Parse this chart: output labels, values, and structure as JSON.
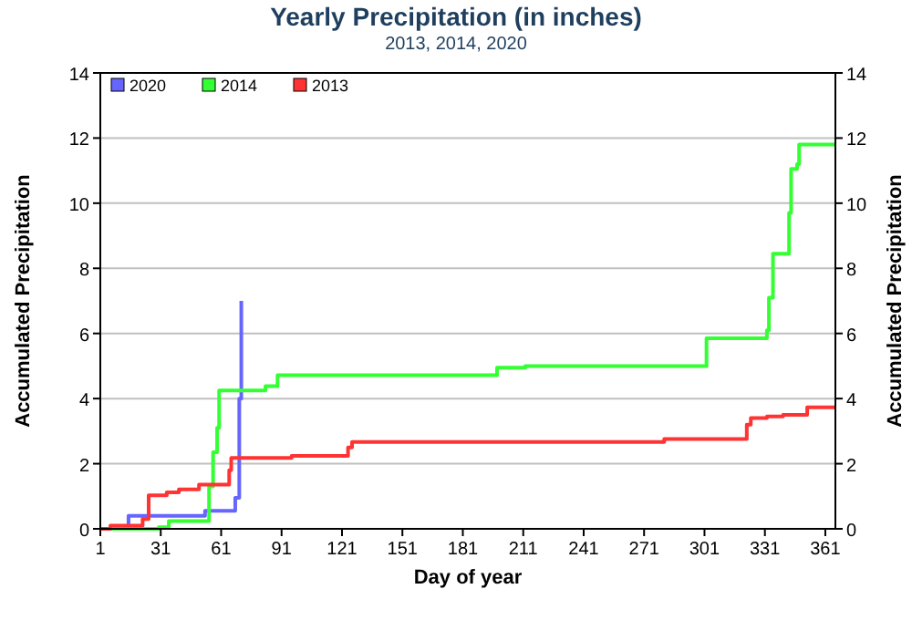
{
  "chart_data": {
    "type": "step",
    "title": "Yearly Precipitation (in inches)",
    "subtitle": "2013, 2014, 2020",
    "xlabel": "Day of year",
    "ylabel": "Accumulated Precipitation",
    "y2label": "Accumulated Precipitation",
    "xlim": [
      1,
      366
    ],
    "xticks": [
      1,
      31,
      61,
      91,
      121,
      151,
      181,
      211,
      241,
      271,
      301,
      331,
      361
    ],
    "ylim": [
      0,
      14
    ],
    "yticks": [
      0,
      2,
      4,
      6,
      8,
      10,
      12,
      14
    ],
    "y2lim": [
      0,
      14
    ],
    "y2ticks": [
      0,
      2,
      4,
      6,
      8,
      10,
      12,
      14
    ],
    "grid": "y",
    "legend": "top left",
    "series": [
      {
        "name": "2020",
        "color": "#6666ff",
        "x": [
          1,
          15,
          53,
          68,
          70,
          71
        ],
        "values": [
          0,
          0.4,
          0.55,
          0.95,
          4,
          7
        ]
      },
      {
        "name": "2014",
        "color": "#33ff33",
        "x": [
          1,
          30,
          35,
          55,
          57,
          59,
          60,
          83,
          89,
          198,
          212,
          302,
          332,
          333,
          335,
          343,
          344,
          347,
          348,
          366
        ],
        "values": [
          0,
          0.05,
          0.24,
          1.3,
          2.35,
          3.1,
          4.25,
          4.38,
          4.72,
          4.95,
          5.0,
          5.85,
          6.1,
          7.1,
          8.45,
          9.7,
          11.05,
          11.2,
          11.8,
          11.8
        ]
      },
      {
        "name": "2013",
        "color": "#ff3333",
        "x": [
          1,
          6,
          22,
          25,
          34,
          40,
          50,
          65,
          66,
          96,
          124,
          126,
          281,
          322,
          324,
          332,
          340,
          352,
          366
        ],
        "values": [
          0,
          0.1,
          0.3,
          1.03,
          1.12,
          1.21,
          1.36,
          1.8,
          2.18,
          2.24,
          2.5,
          2.67,
          2.76,
          3.2,
          3.4,
          3.45,
          3.5,
          3.73,
          3.73
        ]
      }
    ]
  }
}
